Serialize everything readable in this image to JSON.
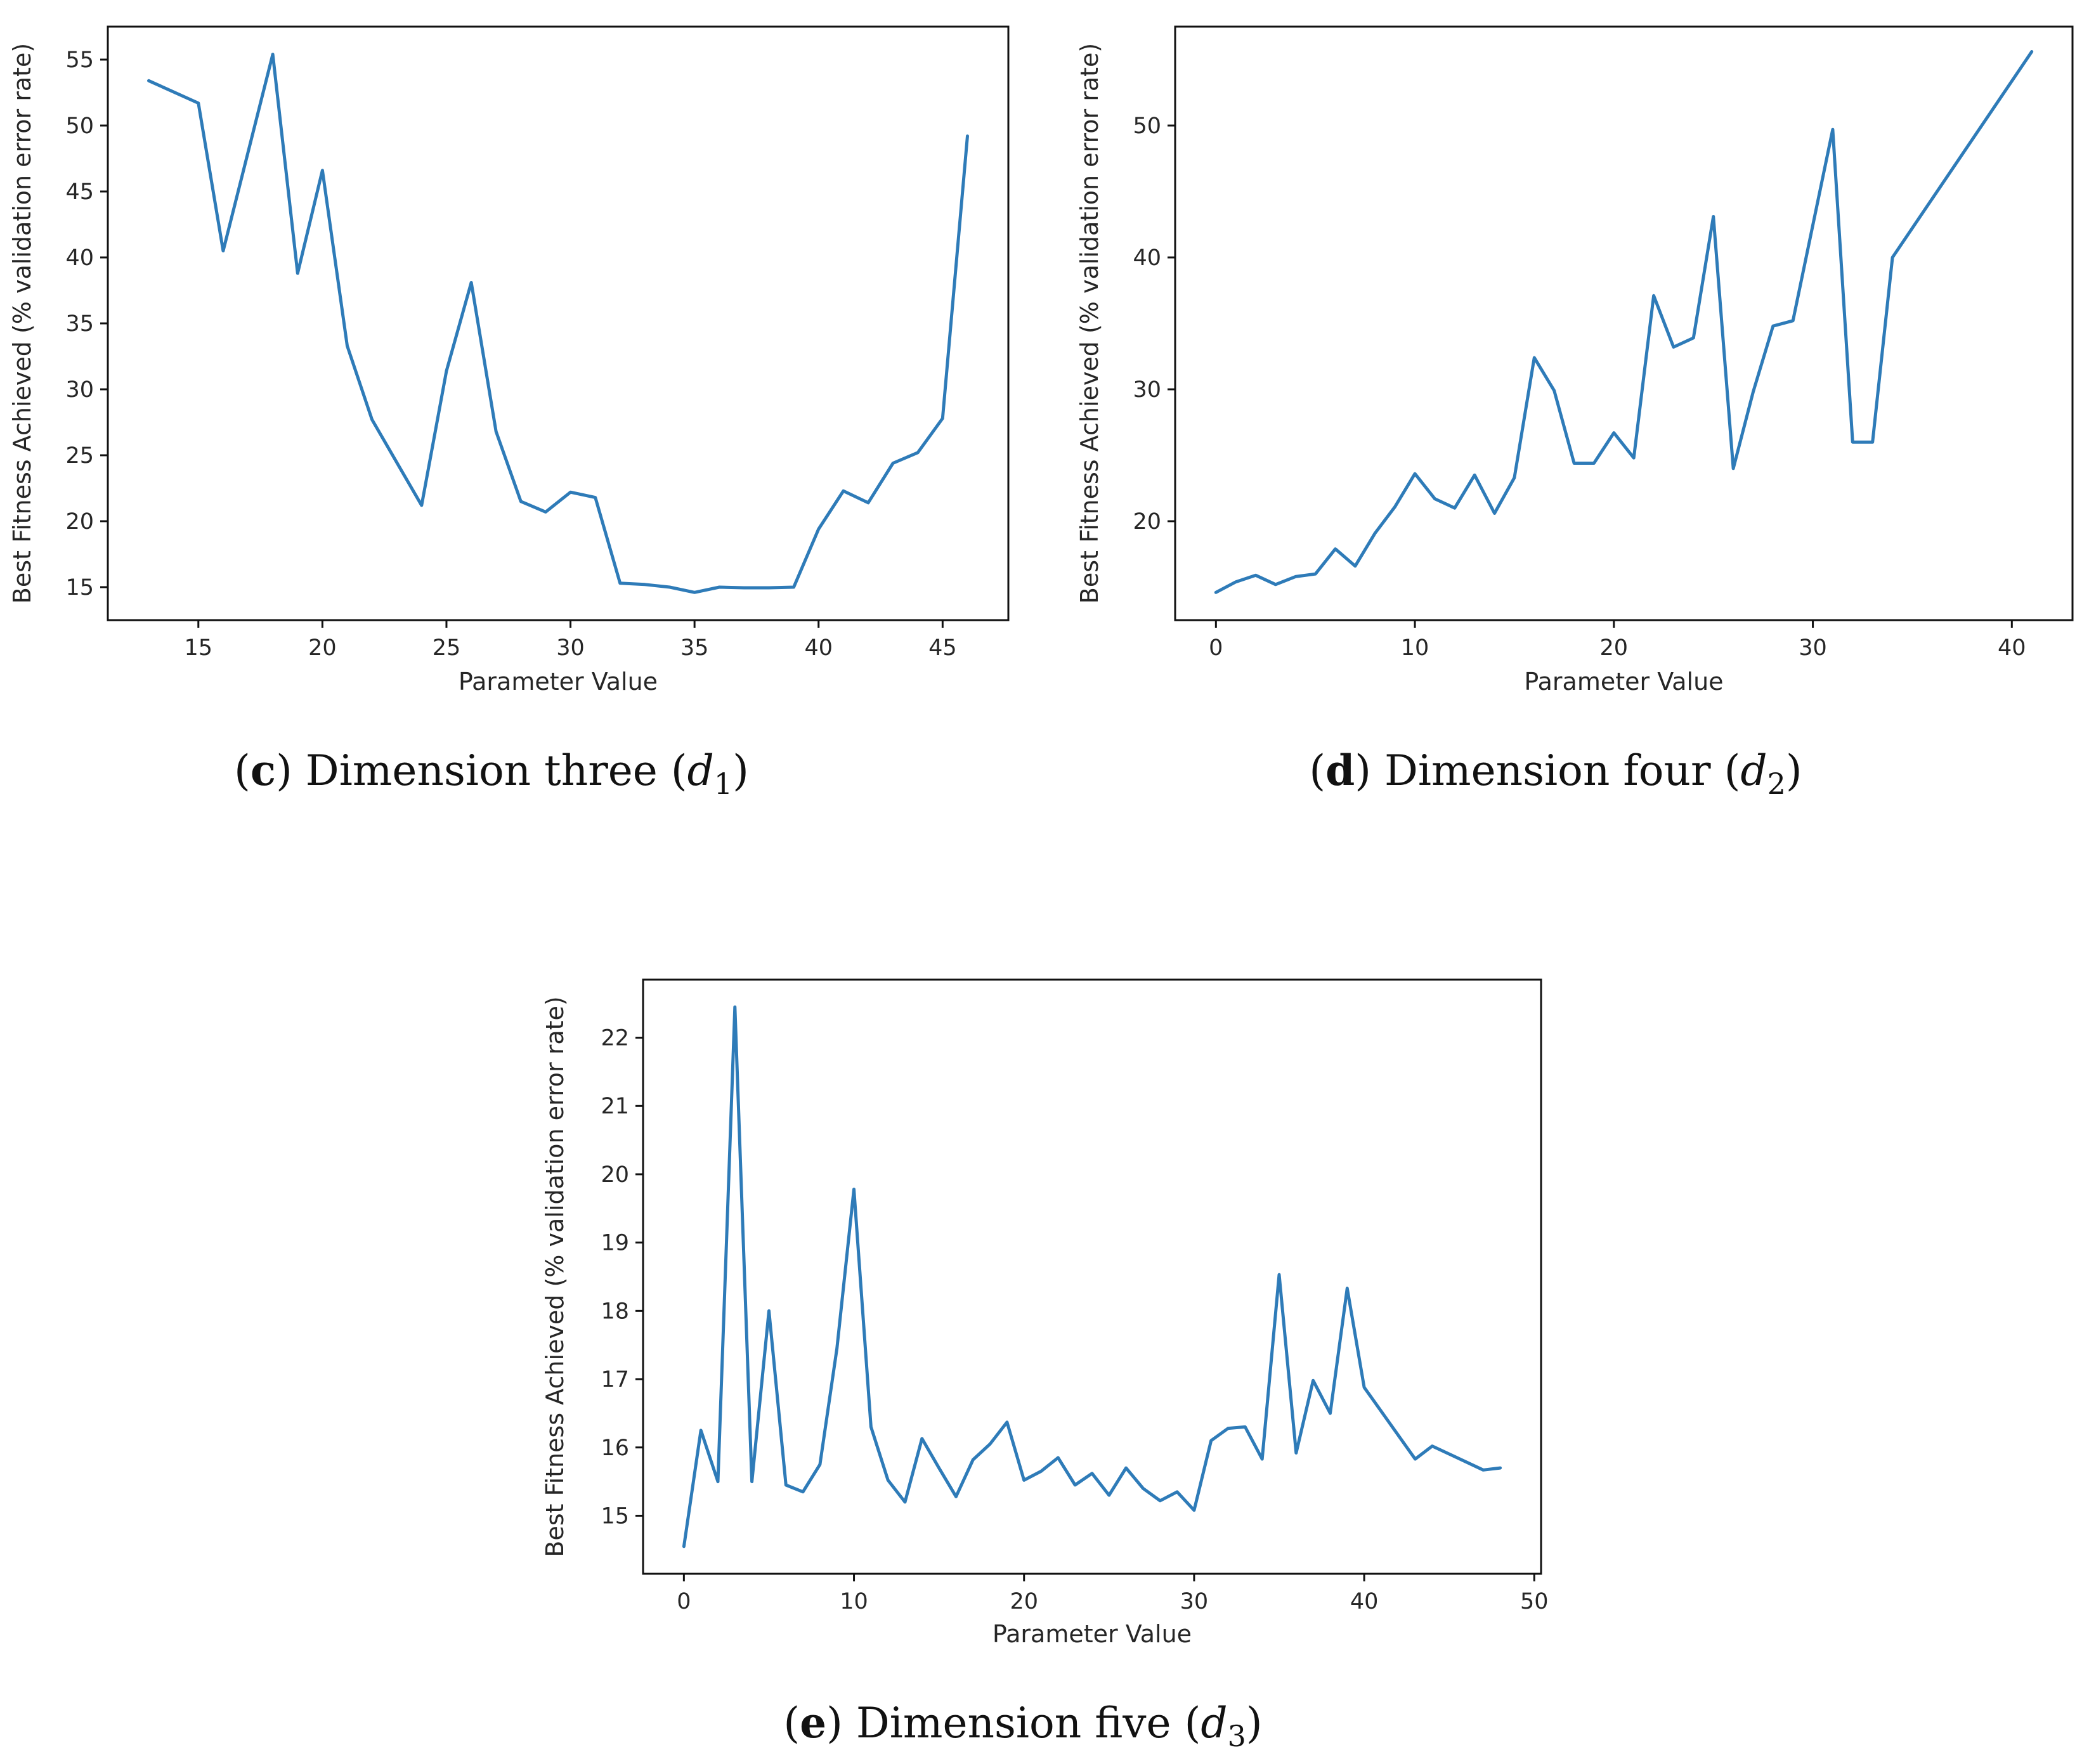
{
  "line_color": "#2e7bb8",
  "chart_data": [
    {
      "type": "line",
      "caption": {
        "letter": "c",
        "text": " Dimension three (",
        "var": "d",
        "sub": "1",
        "close": ")"
      },
      "xlabel": "Parameter Value",
      "ylabel": "Best Fitness Achieved (% validation error rate)",
      "xlim": [
        11.35,
        47.65
      ],
      "ylim": [
        12.5,
        57.5
      ],
      "xticks": [
        15,
        20,
        25,
        30,
        35,
        40,
        45
      ],
      "yticks": [
        15,
        20,
        25,
        30,
        35,
        40,
        45,
        50,
        55
      ],
      "x": [
        13,
        15,
        16,
        18,
        19,
        20,
        21,
        22,
        24,
        25,
        26,
        27,
        28,
        29,
        30,
        31,
        32,
        33,
        34,
        35,
        36,
        37,
        38,
        39,
        40,
        41,
        42,
        43,
        44,
        45,
        46
      ],
      "y": [
        53.4,
        51.7,
        40.5,
        55.4,
        38.8,
        46.6,
        33.3,
        27.7,
        21.2,
        31.4,
        38.1,
        26.8,
        21.5,
        20.7,
        22.2,
        21.8,
        15.3,
        15.2,
        15.0,
        14.6,
        15.0,
        14.95,
        14.95,
        15.0,
        19.4,
        22.3,
        21.4,
        24.4,
        25.2,
        27.8,
        49.2
      ],
      "grid": false,
      "legend": "none"
    },
    {
      "type": "line",
      "caption": {
        "letter": "d",
        "text": " Dimension four (",
        "var": "d",
        "sub": "2",
        "close": ")"
      },
      "xlabel": "Parameter Value",
      "ylabel": "Best Fitness Achieved (% validation error rate)",
      "xlim": [
        -2.05,
        43.05
      ],
      "ylim": [
        12.5,
        57.5
      ],
      "xticks": [
        0,
        10,
        20,
        30,
        40
      ],
      "yticks": [
        20,
        30,
        40,
        50
      ],
      "x": [
        0,
        1,
        2,
        3,
        4,
        5,
        6,
        7,
        8,
        9,
        10,
        11,
        12,
        13,
        14,
        15,
        16,
        17,
        18,
        19,
        20,
        21,
        22,
        23,
        24,
        25,
        26,
        27,
        28,
        29,
        31,
        32,
        33,
        34,
        41
      ],
      "y": [
        14.6,
        15.4,
        15.9,
        15.2,
        15.8,
        16.0,
        17.9,
        16.6,
        19.1,
        21.1,
        23.6,
        21.7,
        21.0,
        23.5,
        20.6,
        23.3,
        32.4,
        29.9,
        24.4,
        24.4,
        26.7,
        24.8,
        37.1,
        33.2,
        33.9,
        43.1,
        24.0,
        29.8,
        34.8,
        35.2,
        49.7,
        26.0,
        26.0,
        40.0,
        55.6
      ],
      "grid": false,
      "legend": "none"
    },
    {
      "type": "line",
      "caption": {
        "letter": "e",
        "text": " Dimension five (",
        "var": "d",
        "sub": "3",
        "close": ")"
      },
      "xlabel": "Parameter Value",
      "ylabel": "Best Fitness Achieved (% validation error rate)",
      "xlim": [
        -2.4,
        50.4
      ],
      "ylim": [
        14.15,
        22.85
      ],
      "xticks": [
        0,
        10,
        20,
        30,
        40,
        50
      ],
      "yticks": [
        15,
        16,
        17,
        18,
        19,
        20,
        21,
        22
      ],
      "x": [
        0,
        1,
        2,
        3,
        4,
        5,
        6,
        7,
        8,
        9,
        10,
        11,
        12,
        13,
        14,
        15,
        16,
        17,
        18,
        19,
        20,
        21,
        22,
        23,
        24,
        25,
        26,
        27,
        28,
        29,
        30,
        31,
        32,
        33,
        34,
        35,
        36,
        37,
        38,
        39,
        40,
        43,
        44,
        47,
        48
      ],
      "y": [
        14.55,
        16.25,
        15.5,
        22.45,
        15.5,
        18.0,
        15.45,
        15.35,
        15.75,
        17.45,
        19.78,
        16.3,
        15.52,
        15.2,
        16.13,
        15.7,
        15.28,
        15.82,
        16.05,
        16.37,
        15.52,
        15.65,
        15.85,
        15.45,
        15.62,
        15.3,
        15.7,
        15.4,
        15.22,
        15.35,
        15.08,
        16.1,
        16.28,
        16.3,
        15.83,
        18.53,
        15.92,
        16.98,
        16.5,
        18.33,
        16.88,
        15.83,
        16.02,
        15.67,
        15.7
      ],
      "grid": false,
      "legend": "none"
    }
  ]
}
